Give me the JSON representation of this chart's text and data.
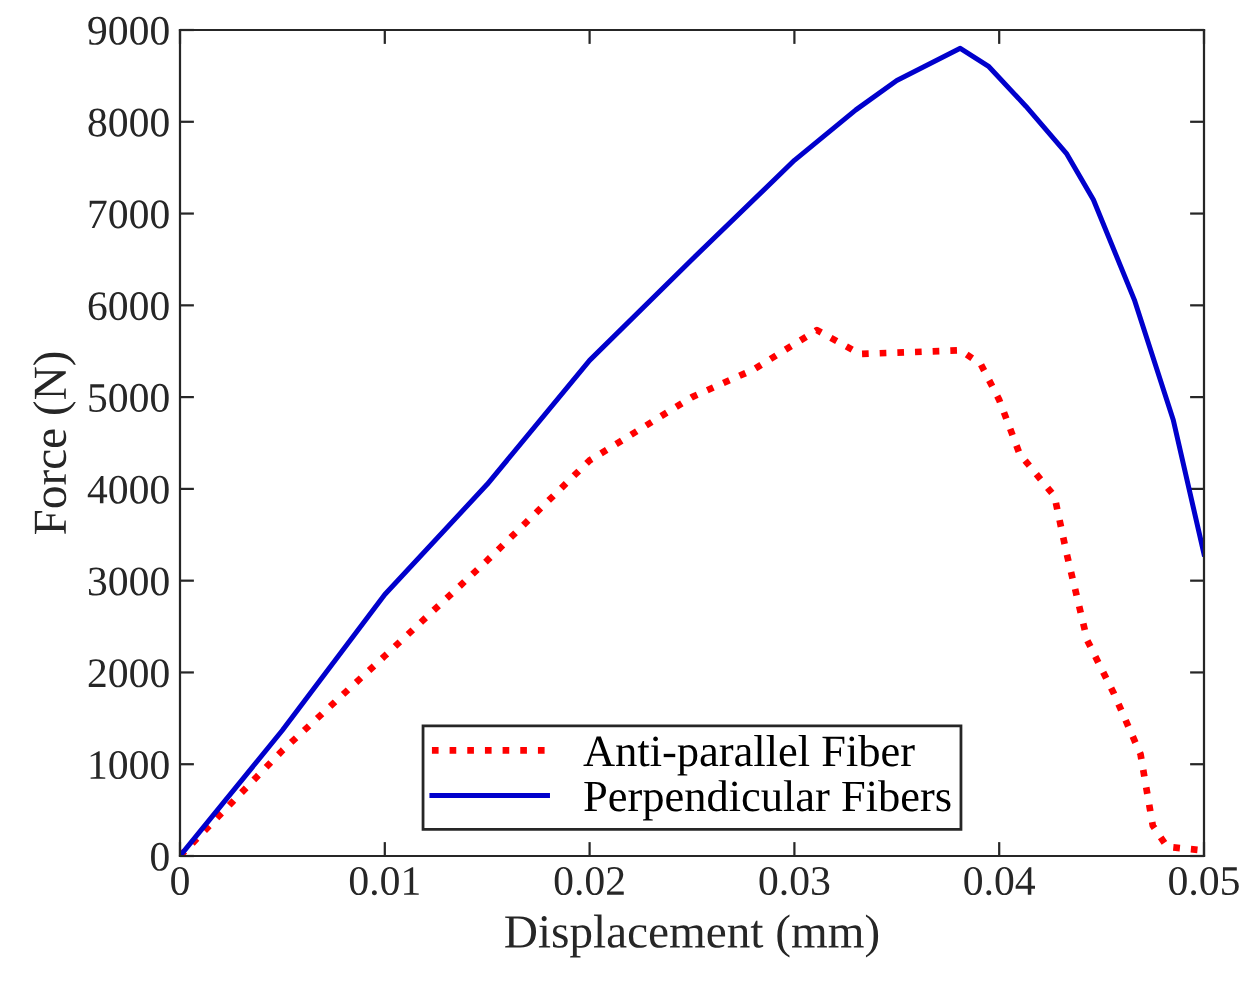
{
  "chart_data": {
    "type": "line",
    "xlabel": "Displacement (mm)",
    "ylabel": "Force (N)",
    "xlim": [
      0,
      0.05
    ],
    "xticks": [
      0,
      0.01,
      0.02,
      0.03,
      0.04,
      0.05
    ],
    "ylim": [
      0,
      9000
    ],
    "yticks": [
      0,
      1000,
      2000,
      3000,
      4000,
      5000,
      6000,
      7000,
      8000,
      9000
    ],
    "grid": false,
    "legend": "bottom",
    "marker": "none",
    "series": [
      {
        "name": "Anti-parallel Fiber",
        "color": "#ff0000",
        "line_style": "dotted",
        "x": [
          0,
          0.005,
          0.01,
          0.015,
          0.02,
          0.025,
          0.028,
          0.0311,
          0.0332,
          0.0381,
          0.0391,
          0.04,
          0.041,
          0.0427,
          0.0433,
          0.0443,
          0.0456,
          0.0469,
          0.0475,
          0.0482,
          0.05
        ],
        "values": [
          0,
          1150,
          2180,
          3220,
          4310,
          5000,
          5300,
          5730,
          5470,
          5510,
          5360,
          4970,
          4380,
          3920,
          3290,
          2350,
          1770,
          1110,
          330,
          100,
          60
        ]
      },
      {
        "name": "Perpendicular Fibers",
        "color": "#0000cc",
        "line_style": "solid",
        "x": [
          0,
          0.005,
          0.01,
          0.015,
          0.02,
          0.025,
          0.03,
          0.033,
          0.035,
          0.0381,
          0.0395,
          0.0413,
          0.0433,
          0.0446,
          0.0466,
          0.0485,
          0.05
        ],
        "values": [
          0,
          1370,
          2850,
          4050,
          5400,
          6500,
          7580,
          8130,
          8450,
          8800,
          8600,
          8170,
          7650,
          7150,
          6060,
          4750,
          3290
        ]
      }
    ]
  }
}
